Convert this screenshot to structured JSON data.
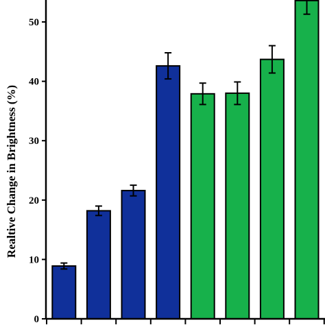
{
  "chart_data": {
    "type": "bar",
    "ylabel": "Realtive Change in Brightness (%)",
    "xlabel": "",
    "ylim": [
      0,
      55
    ],
    "yticks": [
      0,
      10,
      20,
      30,
      40,
      50
    ],
    "grid": false,
    "values": [
      8.9,
      18.2,
      21.6,
      42.6,
      37.9,
      38.0,
      43.7,
      53.6
    ],
    "errors": [
      0.5,
      0.8,
      0.9,
      2.2,
      1.8,
      1.9,
      2.3,
      2.3
    ],
    "colors": [
      "#10309a",
      "#10309a",
      "#10309a",
      "#10309a",
      "#17b14b",
      "#17b14b",
      "#17b14b",
      "#17b14b"
    ]
  }
}
